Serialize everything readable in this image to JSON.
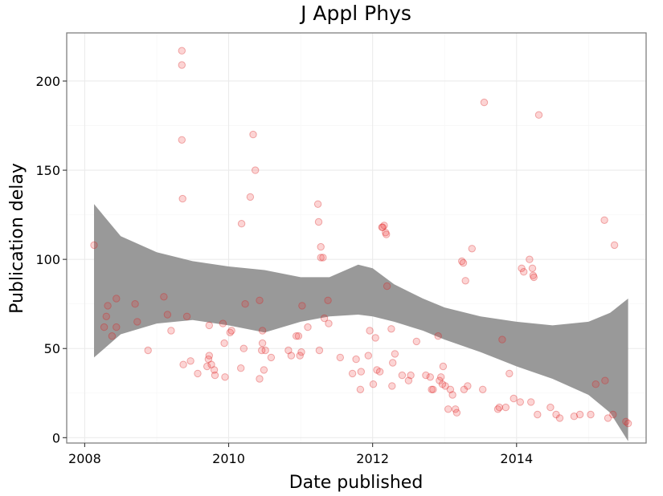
{
  "chart_data": {
    "type": "scatter",
    "title": "J Appl Phys",
    "xlabel": "Date published",
    "ylabel": "Publication delay",
    "xlim": [
      2007.75,
      2015.8
    ],
    "ylim": [
      -3,
      227
    ],
    "x_ticks": [
      2008,
      2010,
      2012,
      2014
    ],
    "y_ticks": [
      0,
      50,
      100,
      150,
      200
    ],
    "grid": true,
    "point_color": "#e8242b",
    "band_color": "#999999",
    "points": [
      [
        2008.13,
        108
      ],
      [
        2008.27,
        62
      ],
      [
        2008.3,
        68
      ],
      [
        2008.32,
        74
      ],
      [
        2008.38,
        57
      ],
      [
        2008.44,
        78
      ],
      [
        2008.44,
        62
      ],
      [
        2008.7,
        75
      ],
      [
        2008.73,
        65
      ],
      [
        2008.88,
        49
      ],
      [
        2009.1,
        79
      ],
      [
        2009.15,
        69
      ],
      [
        2009.2,
        60
      ],
      [
        2009.35,
        217
      ],
      [
        2009.35,
        209
      ],
      [
        2009.35,
        167
      ],
      [
        2009.36,
        134
      ],
      [
        2009.37,
        41
      ],
      [
        2009.42,
        68
      ],
      [
        2009.47,
        43
      ],
      [
        2009.57,
        36
      ],
      [
        2009.7,
        40
      ],
      [
        2009.72,
        44
      ],
      [
        2009.73,
        46
      ],
      [
        2009.73,
        63
      ],
      [
        2009.76,
        41
      ],
      [
        2009.8,
        38
      ],
      [
        2009.81,
        35
      ],
      [
        2009.92,
        64
      ],
      [
        2009.94,
        53
      ],
      [
        2009.95,
        34
      ],
      [
        2010.02,
        59
      ],
      [
        2010.04,
        60
      ],
      [
        2010.17,
        39
      ],
      [
        2010.18,
        120
      ],
      [
        2010.21,
        50
      ],
      [
        2010.23,
        75
      ],
      [
        2010.3,
        135
      ],
      [
        2010.34,
        170
      ],
      [
        2010.37,
        150
      ],
      [
        2010.43,
        77
      ],
      [
        2010.43,
        33
      ],
      [
        2010.46,
        49
      ],
      [
        2010.47,
        53
      ],
      [
        2010.47,
        60
      ],
      [
        2010.49,
        38
      ],
      [
        2010.51,
        49
      ],
      [
        2010.59,
        45
      ],
      [
        2010.83,
        49
      ],
      [
        2010.87,
        46
      ],
      [
        2010.94,
        57
      ],
      [
        2010.97,
        57
      ],
      [
        2010.99,
        46
      ],
      [
        2011.01,
        48
      ],
      [
        2011.02,
        74
      ],
      [
        2011.1,
        62
      ],
      [
        2011.24,
        131
      ],
      [
        2011.25,
        121
      ],
      [
        2011.26,
        49
      ],
      [
        2011.28,
        107
      ],
      [
        2011.28,
        101
      ],
      [
        2011.31,
        101
      ],
      [
        2011.33,
        67
      ],
      [
        2011.38,
        77
      ],
      [
        2011.39,
        64
      ],
      [
        2011.55,
        45
      ],
      [
        2011.72,
        36
      ],
      [
        2011.77,
        44
      ],
      [
        2011.83,
        27
      ],
      [
        2011.84,
        37
      ],
      [
        2011.94,
        46
      ],
      [
        2011.96,
        60
      ],
      [
        2012.01,
        30
      ],
      [
        2012.04,
        56
      ],
      [
        2012.06,
        38
      ],
      [
        2012.1,
        37
      ],
      [
        2012.13,
        118
      ],
      [
        2012.14,
        118
      ],
      [
        2012.16,
        119
      ],
      [
        2012.18,
        115
      ],
      [
        2012.19,
        114
      ],
      [
        2012.2,
        85
      ],
      [
        2012.26,
        61
      ],
      [
        2012.27,
        29
      ],
      [
        2012.28,
        42
      ],
      [
        2012.31,
        47
      ],
      [
        2012.41,
        35
      ],
      [
        2012.5,
        32
      ],
      [
        2012.53,
        35
      ],
      [
        2012.61,
        54
      ],
      [
        2012.74,
        35
      ],
      [
        2012.8,
        34
      ],
      [
        2012.82,
        27
      ],
      [
        2012.84,
        27
      ],
      [
        2012.91,
        57
      ],
      [
        2012.93,
        32
      ],
      [
        2012.95,
        34
      ],
      [
        2012.97,
        30
      ],
      [
        2012.98,
        40
      ],
      [
        2013.01,
        29
      ],
      [
        2013.05,
        16
      ],
      [
        2013.08,
        27
      ],
      [
        2013.11,
        24
      ],
      [
        2013.15,
        16
      ],
      [
        2013.17,
        14
      ],
      [
        2013.24,
        99
      ],
      [
        2013.26,
        98
      ],
      [
        2013.27,
        27
      ],
      [
        2013.29,
        88
      ],
      [
        2013.32,
        29
      ],
      [
        2013.38,
        106
      ],
      [
        2013.53,
        27
      ],
      [
        2013.55,
        188
      ],
      [
        2013.74,
        16
      ],
      [
        2013.76,
        17
      ],
      [
        2013.8,
        55
      ],
      [
        2013.85,
        17
      ],
      [
        2013.9,
        36
      ],
      [
        2013.96,
        22
      ],
      [
        2014.05,
        20
      ],
      [
        2014.07,
        95
      ],
      [
        2014.1,
        93
      ],
      [
        2014.18,
        100
      ],
      [
        2014.2,
        20
      ],
      [
        2014.22,
        95
      ],
      [
        2014.23,
        91
      ],
      [
        2014.24,
        90
      ],
      [
        2014.29,
        13
      ],
      [
        2014.31,
        181
      ],
      [
        2014.47,
        17
      ],
      [
        2014.55,
        13
      ],
      [
        2014.6,
        11
      ],
      [
        2014.8,
        12
      ],
      [
        2014.88,
        13
      ],
      [
        2015.03,
        13
      ],
      [
        2015.1,
        30
      ],
      [
        2015.22,
        122
      ],
      [
        2015.23,
        32
      ],
      [
        2015.27,
        11
      ],
      [
        2015.34,
        13
      ],
      [
        2015.36,
        108
      ],
      [
        2015.52,
        9
      ],
      [
        2015.55,
        8
      ]
    ],
    "smooth_band": {
      "x": [
        2008.13,
        2008.5,
        2009,
        2009.5,
        2010,
        2010.5,
        2011,
        2011.4,
        2011.8,
        2012,
        2012.3,
        2012.7,
        2013,
        2013.5,
        2014,
        2014.5,
        2015,
        2015.3,
        2015.55
      ],
      "lower": [
        45,
        58,
        64,
        66,
        63,
        59,
        65,
        68,
        69,
        68,
        65,
        60,
        55,
        48,
        40,
        33,
        24,
        14,
        -2
      ],
      "upper": [
        131,
        113,
        104,
        99,
        96,
        94,
        90,
        90,
        97,
        95,
        86,
        78,
        73,
        68,
        65,
        63,
        65,
        70,
        78
      ]
    }
  }
}
